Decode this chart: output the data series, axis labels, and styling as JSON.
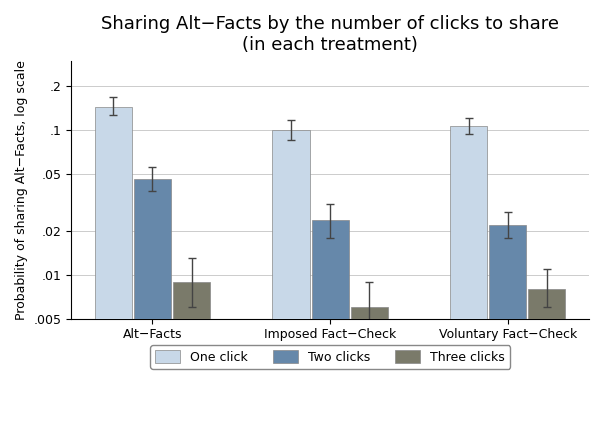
{
  "title": "Sharing Alt−Facts by the number of clicks to share",
  "subtitle": "(in each treatment)",
  "ylabel": "Probability of sharing Alt−Facts, log scale",
  "groups": [
    "Alt−Facts",
    "Imposed Fact−Check",
    "Voluntary Fact−Check"
  ],
  "series_labels": [
    "One click",
    "Two clicks",
    "Three clicks"
  ],
  "bar_colors": [
    "#c8d8e8",
    "#6688aa",
    "#7a7a6a"
  ],
  "bar_edge_colors": [
    "#888888",
    "#888888",
    "#888888"
  ],
  "values": [
    [
      0.145,
      0.1,
      0.106
    ],
    [
      0.046,
      0.024,
      0.022
    ],
    [
      0.009,
      0.006,
      0.008
    ]
  ],
  "errors_low": [
    [
      0.018,
      0.015,
      0.012
    ],
    [
      0.008,
      0.006,
      0.004
    ],
    [
      0.003,
      0.002,
      0.002
    ]
  ],
  "errors_high": [
    [
      0.025,
      0.018,
      0.015
    ],
    [
      0.01,
      0.007,
      0.005
    ],
    [
      0.004,
      0.003,
      0.003
    ]
  ],
  "ylim": [
    0.005,
    0.3
  ],
  "yticks": [
    0.005,
    0.01,
    0.02,
    0.05,
    0.1,
    0.2
  ],
  "ytick_labels": [
    ".005",
    ".01",
    ".02",
    ".05",
    ".1",
    ".2"
  ],
  "background_color": "#ffffff",
  "grid_color": "#cccccc",
  "bar_width": 0.22,
  "title_fontsize": 13,
  "subtitle_fontsize": 11,
  "axis_label_fontsize": 9,
  "tick_fontsize": 9,
  "legend_fontsize": 9
}
